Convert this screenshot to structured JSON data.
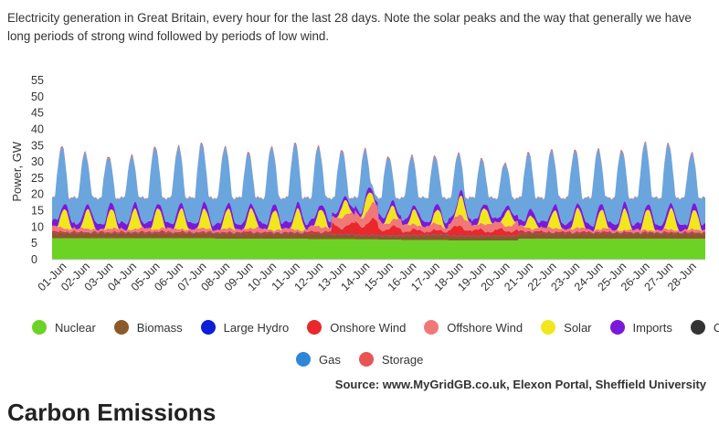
{
  "caption": "Electricity generation in Great Britain, every hour for the last 28 days. Note the solar peaks and the way that generally we have long periods of strong wind followed by periods of low wind.",
  "source": "Source: www.MyGridGB.co.uk, Elexon Portal, Sheffield University",
  "next_heading": "Carbon Emissions",
  "chart_data": {
    "type": "area",
    "stacked": true,
    "title": "",
    "xlabel": "",
    "ylabel": "Power, GW",
    "ylim": [
      0,
      55
    ],
    "yticks": [
      0,
      5,
      10,
      15,
      20,
      25,
      30,
      35,
      40,
      45,
      50,
      55
    ],
    "categories": [
      "01-Jun",
      "02-Jun",
      "03-Jun",
      "04-Jun",
      "05-Jun",
      "06-Jun",
      "07-Jun",
      "08-Jun",
      "09-Jun",
      "10-Jun",
      "11-Jun",
      "12-Jun",
      "13-Jun",
      "14-Jun",
      "15-Jun",
      "16-Jun",
      "17-Jun",
      "18-Jun",
      "19-Jun",
      "20-Jun",
      "21-Jun",
      "22-Jun",
      "23-Jun",
      "24-Jun",
      "25-Jun",
      "26-Jun",
      "27-Jun",
      "28-Jun"
    ],
    "legend_position": "bottom",
    "series": [
      {
        "name": "Nuclear",
        "color": "#6cd224",
        "daily_avg_gw": [
          6.5,
          6.5,
          6.5,
          6.5,
          6.5,
          6.5,
          6.5,
          6.4,
          6.4,
          6.4,
          6.4,
          6.3,
          6.3,
          6.2,
          6.1,
          6.0,
          6.0,
          5.9,
          5.9,
          5.9,
          6.4,
          6.4,
          6.4,
          6.4,
          6.4,
          6.4,
          6.4,
          6.4
        ]
      },
      {
        "name": "Biomass",
        "color": "#8b5a2b",
        "daily_avg_gw": [
          1.6,
          1.6,
          1.6,
          1.6,
          1.6,
          1.6,
          1.6,
          1.6,
          1.6,
          1.6,
          1.6,
          1.6,
          1.4,
          1.2,
          1.2,
          1.4,
          1.5,
          1.3,
          1.3,
          1.4,
          1.6,
          1.6,
          1.6,
          1.6,
          1.6,
          1.6,
          1.6,
          1.6
        ]
      },
      {
        "name": "Large Hydro",
        "color": "#0b1fd6",
        "daily_avg_gw": [
          0.1,
          0.1,
          0.1,
          0.1,
          0.1,
          0.1,
          0.1,
          0.1,
          0.1,
          0.1,
          0.1,
          0.1,
          0.1,
          0.1,
          0.1,
          0.1,
          0.1,
          0.1,
          0.1,
          0.1,
          0.1,
          0.1,
          0.1,
          0.1,
          0.1,
          0.1,
          0.1,
          0.1
        ]
      },
      {
        "name": "Onshore Wind",
        "color": "#e8282b",
        "daily_avg_gw": [
          0.4,
          0.3,
          0.3,
          0.3,
          0.4,
          0.3,
          0.3,
          0.3,
          0.4,
          0.3,
          0.3,
          0.6,
          2.6,
          3.8,
          2.2,
          1.4,
          1.2,
          2.4,
          1.6,
          1.6,
          0.6,
          0.4,
          0.4,
          0.4,
          0.3,
          0.3,
          0.3,
          0.3
        ]
      },
      {
        "name": "Offshore Wind",
        "color": "#f07878",
        "daily_avg_gw": [
          1.2,
          0.9,
          0.9,
          0.9,
          1.0,
          0.9,
          0.9,
          0.9,
          1.1,
          0.9,
          0.9,
          1.4,
          2.8,
          3.8,
          2.4,
          1.8,
          1.6,
          2.6,
          2.0,
          2.1,
          1.2,
          1.1,
          1.0,
          0.8,
          0.7,
          0.7,
          0.7,
          0.7
        ]
      },
      {
        "name": "Solar",
        "color": "#f2e61c",
        "daily_peak_gw": [
          6.0,
          6.0,
          6.0,
          6.2,
          6.5,
          6.3,
          6.0,
          6.0,
          6.0,
          6.2,
          6.5,
          5.5,
          4.5,
          5.0,
          4.5,
          4.5,
          4.5,
          6.0,
          5.0,
          5.0,
          4.0,
          5.5,
          6.0,
          6.0,
          6.5,
          6.5,
          6.5,
          6.0
        ]
      },
      {
        "name": "Imports",
        "color": "#7a1ad9",
        "daily_avg_gw": [
          1.8,
          1.8,
          1.8,
          1.8,
          1.8,
          1.8,
          1.8,
          1.8,
          1.8,
          1.8,
          1.8,
          1.8,
          1.5,
          1.4,
          1.5,
          1.6,
          1.6,
          1.5,
          1.6,
          1.6,
          1.8,
          1.8,
          1.8,
          1.8,
          1.8,
          1.8,
          1.8,
          1.8
        ]
      },
      {
        "name": "Coal",
        "color": "#333333",
        "daily_avg_gw": [
          0,
          0,
          0,
          0,
          0,
          0,
          0,
          0,
          0,
          0,
          0,
          0,
          0,
          0,
          0,
          0,
          0,
          0,
          0,
          0,
          0,
          0,
          0,
          0,
          0,
          0,
          0,
          0
        ]
      },
      {
        "name": "Gas",
        "color": "#6aa5dd",
        "daily_peak_total_gw": [
          35,
          33,
          32,
          32,
          35,
          35,
          36,
          35,
          33,
          35,
          36,
          35,
          34,
          34,
          32,
          32,
          32,
          33,
          31,
          30,
          33,
          34,
          34,
          34,
          34,
          36,
          36,
          33
        ]
      },
      {
        "name": "Storage",
        "color": "#e85454",
        "daily_avg_gw": [
          0.4,
          0.4,
          0.4,
          0.4,
          0.4,
          0.4,
          0.4,
          0.4,
          0.4,
          0.4,
          0.4,
          0.4,
          0.4,
          0.4,
          0.4,
          0.4,
          0.4,
          0.4,
          0.4,
          0.4,
          0.4,
          0.4,
          0.4,
          0.4,
          0.4,
          0.4,
          0.4,
          0.4
        ]
      }
    ]
  }
}
